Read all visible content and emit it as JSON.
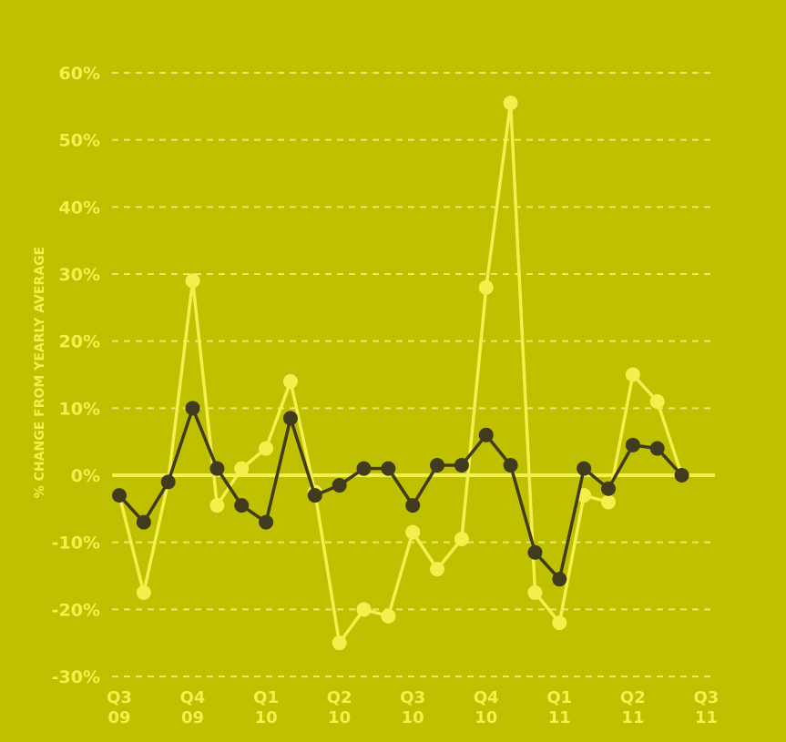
{
  "chart_data": {
    "type": "line",
    "ylabel": "% CHANGE FROM YEARLY AVERAGE",
    "ylim": [
      -30,
      60
    ],
    "yticks": [
      60,
      50,
      40,
      30,
      20,
      10,
      0,
      -10,
      -20,
      -30
    ],
    "ytick_labels": [
      "60%",
      "50%",
      "40%",
      "30%",
      "20%",
      "10%",
      "0%",
      "-10%",
      "-20%",
      "-30%"
    ],
    "grid": true,
    "x_ticks": [
      {
        "label": [
          "Q3",
          "09"
        ],
        "x": 0
      },
      {
        "label": [
          "Q4",
          "09"
        ],
        "x": 3
      },
      {
        "label": [
          "Q1",
          "10"
        ],
        "x": 6
      },
      {
        "label": [
          "Q2",
          "10"
        ],
        "x": 9
      },
      {
        "label": [
          "Q3",
          "10"
        ],
        "x": 12
      },
      {
        "label": [
          "Q4",
          "10"
        ],
        "x": 15
      },
      {
        "label": [
          "Q1",
          "11"
        ],
        "x": 18
      },
      {
        "label": [
          "Q2",
          "11"
        ],
        "x": 21
      },
      {
        "label": [
          "Q3",
          "11"
        ],
        "x": 24
      }
    ],
    "series": [
      {
        "color": "#f3f04d",
        "values": [
          -3,
          -17.5,
          -1,
          29,
          -4.5,
          1,
          4,
          14,
          -2.5,
          -25,
          -20,
          -21,
          -8.5,
          -14,
          -9.5,
          28,
          55.5,
          -17.5,
          -22,
          -3,
          -4,
          15,
          11,
          0
        ]
      },
      {
        "color": "#3f3b1c",
        "values": [
          -3,
          -7,
          -1,
          10,
          1,
          -4.5,
          -7,
          8.5,
          -3,
          -1.5,
          1,
          1,
          -4.5,
          1.5,
          1.5,
          6,
          1.5,
          -11.5,
          -15.5,
          1,
          -2,
          4.5,
          4,
          0
        ]
      }
    ]
  }
}
